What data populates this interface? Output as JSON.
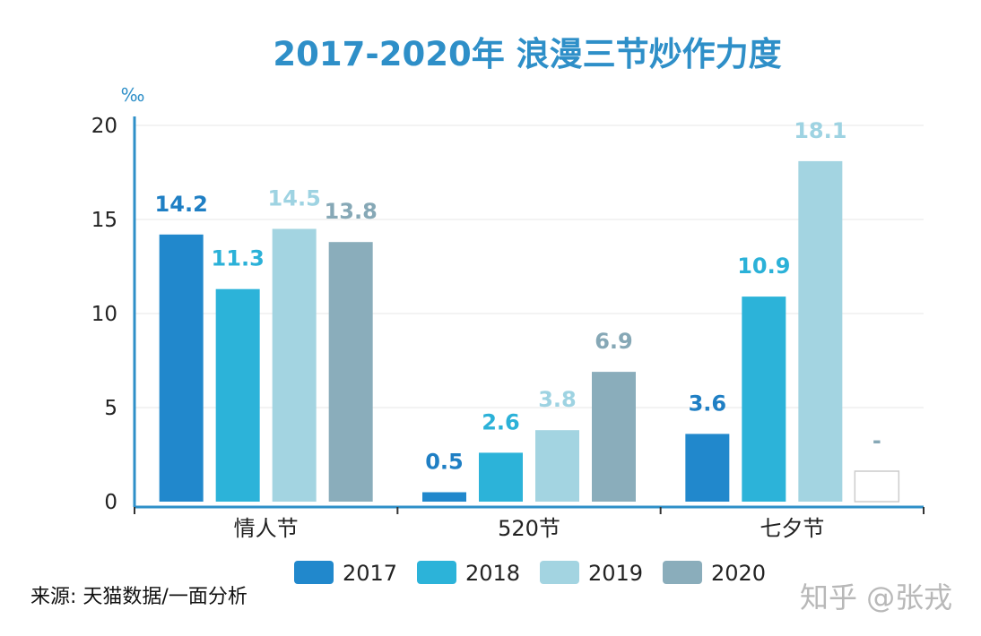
{
  "colors": {
    "title": "#2e8fc8",
    "axis": "#2e8fc8",
    "grid": "#e7e7e7",
    "label_2017": "#1f7fc4",
    "label_2018": "#2bb1d8",
    "label_2019": "#9ed3e2",
    "label_2020": "#86a8b6"
  },
  "source_text": "来源: 天猫数据/一面分析",
  "watermark_text": "知乎 @张戎",
  "chart_data": {
    "type": "bar",
    "title": "2017-2020年 浪漫三节炒作力度",
    "unit": "‰",
    "categories": [
      "情人节",
      "520节",
      "七夕节"
    ],
    "yticks": [
      0,
      5,
      10,
      15,
      20
    ],
    "ylim": [
      0,
      20
    ],
    "grid": true,
    "legend_position": "bottom",
    "series": [
      {
        "name": "2017",
        "color": "#2188cc",
        "values": [
          14.2,
          0.5,
          3.6
        ],
        "labels": [
          "14.2",
          "0.5",
          "3.6"
        ]
      },
      {
        "name": "2018",
        "color": "#2cb3d9",
        "values": [
          11.3,
          2.6,
          10.9
        ],
        "labels": [
          "11.3",
          "2.6",
          "10.9"
        ]
      },
      {
        "name": "2019",
        "color": "#a3d4e1",
        "values": [
          14.5,
          3.8,
          18.1
        ],
        "labels": [
          "14.5",
          "3.8",
          "18.1"
        ]
      },
      {
        "name": "2020",
        "color": "#8aadbb",
        "values": [
          13.8,
          6.9,
          null
        ],
        "labels": [
          "13.8",
          "6.9",
          "-"
        ]
      }
    ]
  }
}
